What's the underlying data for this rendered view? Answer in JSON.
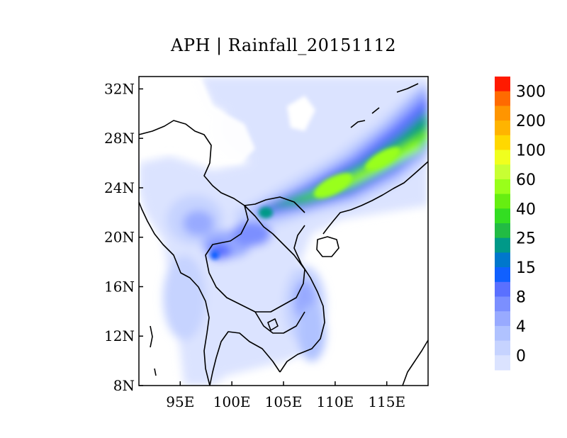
{
  "title": "APH | Rainfall_20151112",
  "map": {
    "lat_ticks": [
      "32N",
      "28N",
      "24N",
      "20N",
      "16N",
      "12N",
      "8N"
    ],
    "lon_ticks": [
      "95E",
      "100E",
      "105E",
      "110E",
      "115E"
    ],
    "lon_range": [
      91,
      119
    ],
    "lat_range": [
      8,
      33
    ]
  },
  "colorbar": {
    "labels": [
      "300",
      "200",
      "100",
      "60",
      "40",
      "25",
      "15",
      "8",
      "4",
      "0"
    ],
    "colors": [
      "#ff1a00",
      "#ff6a00",
      "#ff9500",
      "#ffb400",
      "#ffd800",
      "#f0ff1e",
      "#c8ff33",
      "#99ff1a",
      "#66ee11",
      "#33dd22",
      "#22bb44",
      "#009988",
      "#0077cc",
      "#1060ff",
      "#5a70ff",
      "#7b8fff",
      "#98aaff",
      "#b0c2ff",
      "#c6d3ff",
      "#dbe3ff"
    ]
  }
}
